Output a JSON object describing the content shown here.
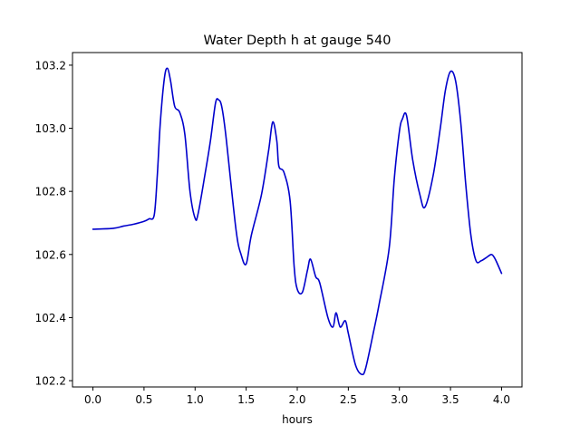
{
  "chart_data": {
    "type": "line",
    "title": "Water Depth h at gauge 540",
    "xlabel": "hours",
    "ylabel": "",
    "xlim": [
      -0.2,
      4.2
    ],
    "ylim": [
      102.18,
      103.24
    ],
    "xticks": [
      0.0,
      0.5,
      1.0,
      1.5,
      2.0,
      2.5,
      3.0,
      3.5,
      4.0
    ],
    "xtick_labels": [
      "0.0",
      "0.5",
      "1.0",
      "1.5",
      "2.0",
      "2.5",
      "3.0",
      "3.5",
      "4.0"
    ],
    "yticks": [
      102.2,
      102.4,
      102.6,
      102.8,
      103.0,
      103.2
    ],
    "ytick_labels": [
      "102.2",
      "102.4",
      "102.6",
      "102.8",
      "103.0",
      "103.2"
    ],
    "grid": false,
    "series": [
      {
        "color": "#0000cc",
        "x": [
          0.0,
          0.2,
          0.3,
          0.4,
          0.5,
          0.55,
          0.6,
          0.63,
          0.66,
          0.7,
          0.73,
          0.76,
          0.8,
          0.85,
          0.9,
          0.95,
          1.0,
          1.03,
          1.1,
          1.15,
          1.2,
          1.23,
          1.26,
          1.3,
          1.4,
          1.45,
          1.5,
          1.55,
          1.65,
          1.72,
          1.76,
          1.8,
          1.82,
          1.87,
          1.93,
          1.97,
          2.0,
          2.05,
          2.1,
          2.13,
          2.18,
          2.22,
          2.3,
          2.35,
          2.38,
          2.42,
          2.47,
          2.5,
          2.57,
          2.63,
          2.67,
          2.75,
          2.8,
          2.9,
          2.95,
          3.0,
          3.03,
          3.07,
          3.13,
          3.2,
          3.25,
          3.33,
          3.4,
          3.45,
          3.5,
          3.55,
          3.6,
          3.65,
          3.7,
          3.75,
          3.8,
          3.85,
          3.9,
          3.93,
          3.96,
          4.0
        ],
        "values": [
          102.68,
          102.683,
          102.69,
          102.696,
          102.705,
          102.713,
          102.725,
          102.85,
          103.02,
          103.16,
          103.19,
          103.15,
          103.07,
          103.05,
          102.98,
          102.8,
          102.715,
          102.73,
          102.86,
          102.96,
          103.08,
          103.09,
          103.07,
          102.98,
          102.68,
          102.6,
          102.57,
          102.66,
          102.79,
          102.93,
          103.02,
          102.96,
          102.88,
          102.86,
          102.77,
          102.56,
          102.49,
          102.48,
          102.55,
          102.585,
          102.53,
          102.51,
          102.4,
          102.37,
          102.415,
          102.37,
          102.39,
          102.35,
          102.25,
          102.22,
          102.24,
          102.36,
          102.44,
          102.62,
          102.84,
          102.99,
          103.03,
          103.04,
          102.9,
          102.79,
          102.75,
          102.85,
          103.0,
          103.12,
          103.18,
          103.15,
          103.02,
          102.82,
          102.66,
          102.58,
          102.58,
          102.59,
          102.6,
          102.59,
          102.57,
          102.54
        ]
      }
    ]
  }
}
